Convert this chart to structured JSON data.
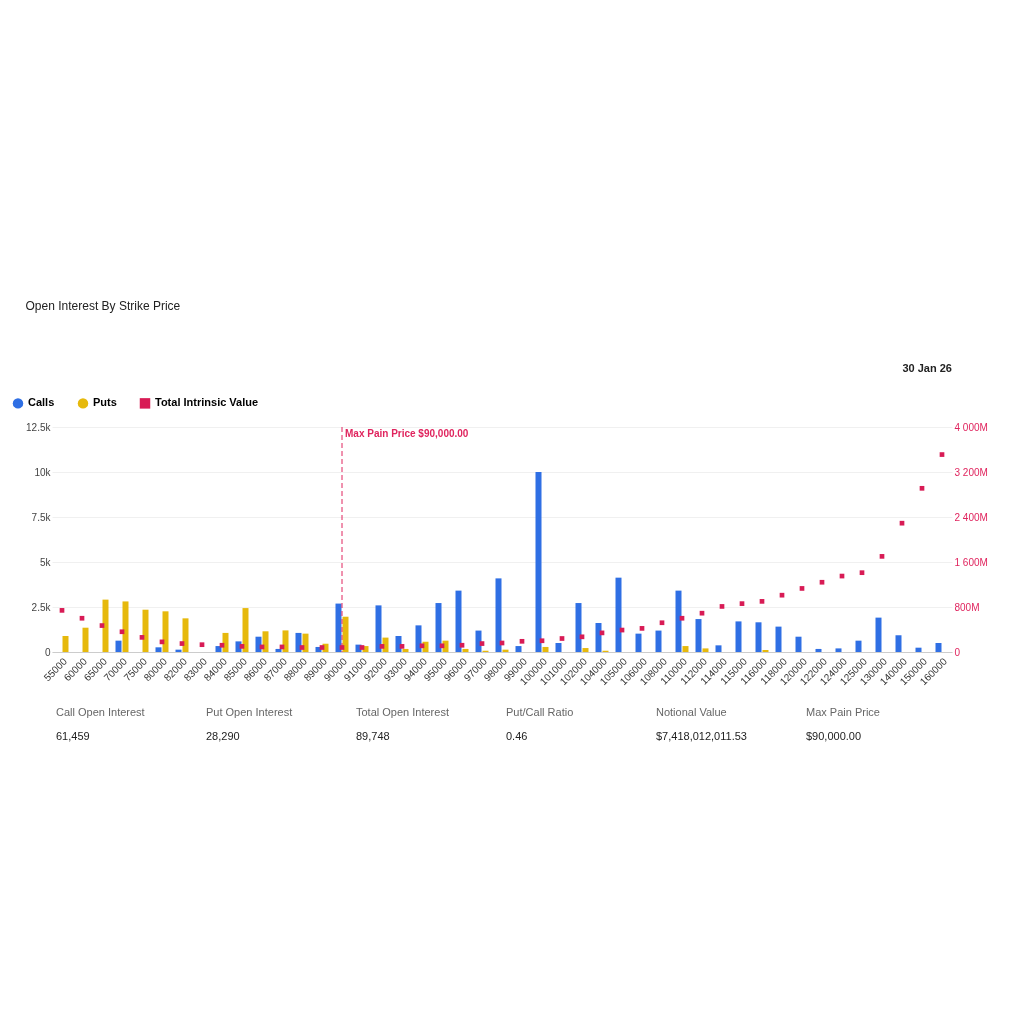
{
  "chart_data": {
    "type": "bar",
    "title": "Open Interest By Strike Price",
    "annotations": [
      "30 Jan 26",
      "Call Open Interest",
      "61,459",
      "Put Open Interest",
      "28,290",
      "Total Open Interest",
      "89,748",
      "Put/Call Ratio",
      "0.46",
      "Notional Value",
      "$7,418,012,011.53",
      "Max Pain Price",
      "$90,000.00"
    ],
    "categories": [
      "55000",
      "60000",
      "65000",
      "70000",
      "75000",
      "80000",
      "82000",
      "83000",
      "84000",
      "85000",
      "86000",
      "87000",
      "88000",
      "89000",
      "90000",
      "91000",
      "92000",
      "93000",
      "94000",
      "95000",
      "96000",
      "97000",
      "98000",
      "99000",
      "100000",
      "101000",
      "102000",
      "104000",
      "105000",
      "106000",
      "108000",
      "110000",
      "112000",
      "114000",
      "115000",
      "116000",
      "118000",
      "120000",
      "122000",
      "124000",
      "125000",
      "130000",
      "140000",
      "150000",
      "160000"
    ],
    "series": [
      {
        "name": "Calls",
        "color": "#2f6fe4",
        "values": [
          0,
          0,
          0,
          630,
          0,
          260,
          130,
          0,
          330,
          590,
          850,
          170,
          1060,
          280,
          2690,
          410,
          2590,
          890,
          1480,
          2720,
          3410,
          1190,
          4090,
          330,
          10000,
          500,
          2720,
          1610,
          4130,
          1020,
          1190,
          3410,
          1830,
          370,
          1700,
          1650,
          1410,
          850,
          170,
          200,
          630,
          1910,
          930,
          240,
          500
        ]
      },
      {
        "name": "Puts",
        "color": "#e6b90c",
        "values": [
          890,
          1350,
          2910,
          2810,
          2350,
          2260,
          1870,
          0,
          1060,
          2440,
          1150,
          1200,
          1020,
          460,
          1960,
          330,
          800,
          170,
          570,
          630,
          170,
          70,
          130,
          0,
          280,
          0,
          220,
          70,
          0,
          0,
          0,
          330,
          200,
          0,
          0,
          110,
          0,
          0,
          0,
          0,
          0,
          0,
          0,
          0,
          0
        ]
      },
      {
        "name": "Total Intrinsic Value",
        "type": "scatter",
        "axis": "y2",
        "marker": "square",
        "color": "#d81b55",
        "values": [
          740,
          600,
          470,
          360,
          260,
          180,
          150,
          130,
          120,
          100,
          90,
          90,
          80,
          80,
          80,
          80,
          100,
          100,
          110,
          110,
          120,
          150,
          160,
          190,
          200,
          240,
          270,
          340,
          390,
          420,
          520,
          600,
          690,
          810,
          860,
          900,
          1010,
          1130,
          1240,
          1350,
          1410,
          1700,
          2290,
          2910,
          3510
        ]
      }
    ],
    "ylim": [
      0,
      12500
    ],
    "yticks": [
      0,
      {
        "value": 2500,
        "label": "2.5k"
      },
      {
        "value": 5000,
        "label": "5k"
      },
      {
        "value": 7500,
        "label": "7.5k"
      },
      {
        "value": 10000,
        "label": "10k"
      },
      {
        "value": 12500,
        "label": "12.5k"
      }
    ],
    "y2lim": [
      0,
      4000
    ],
    "y2ticks": [
      0,
      {
        "value": 800,
        "label": "800M"
      },
      {
        "value": 1600,
        "label": "1 600M"
      },
      {
        "value": 2400,
        "label": "2 400M"
      },
      {
        "value": 3200,
        "label": "3 200M"
      },
      {
        "value": 4000,
        "label": "4 000M"
      }
    ],
    "ref_lines": [
      {
        "axis": "x",
        "value": "90000",
        "label": "Max Pain Price $90,000.00",
        "color": "#e0245e",
        "line_style": "dashed"
      }
    ],
    "legend": "top left",
    "grid": "y"
  }
}
